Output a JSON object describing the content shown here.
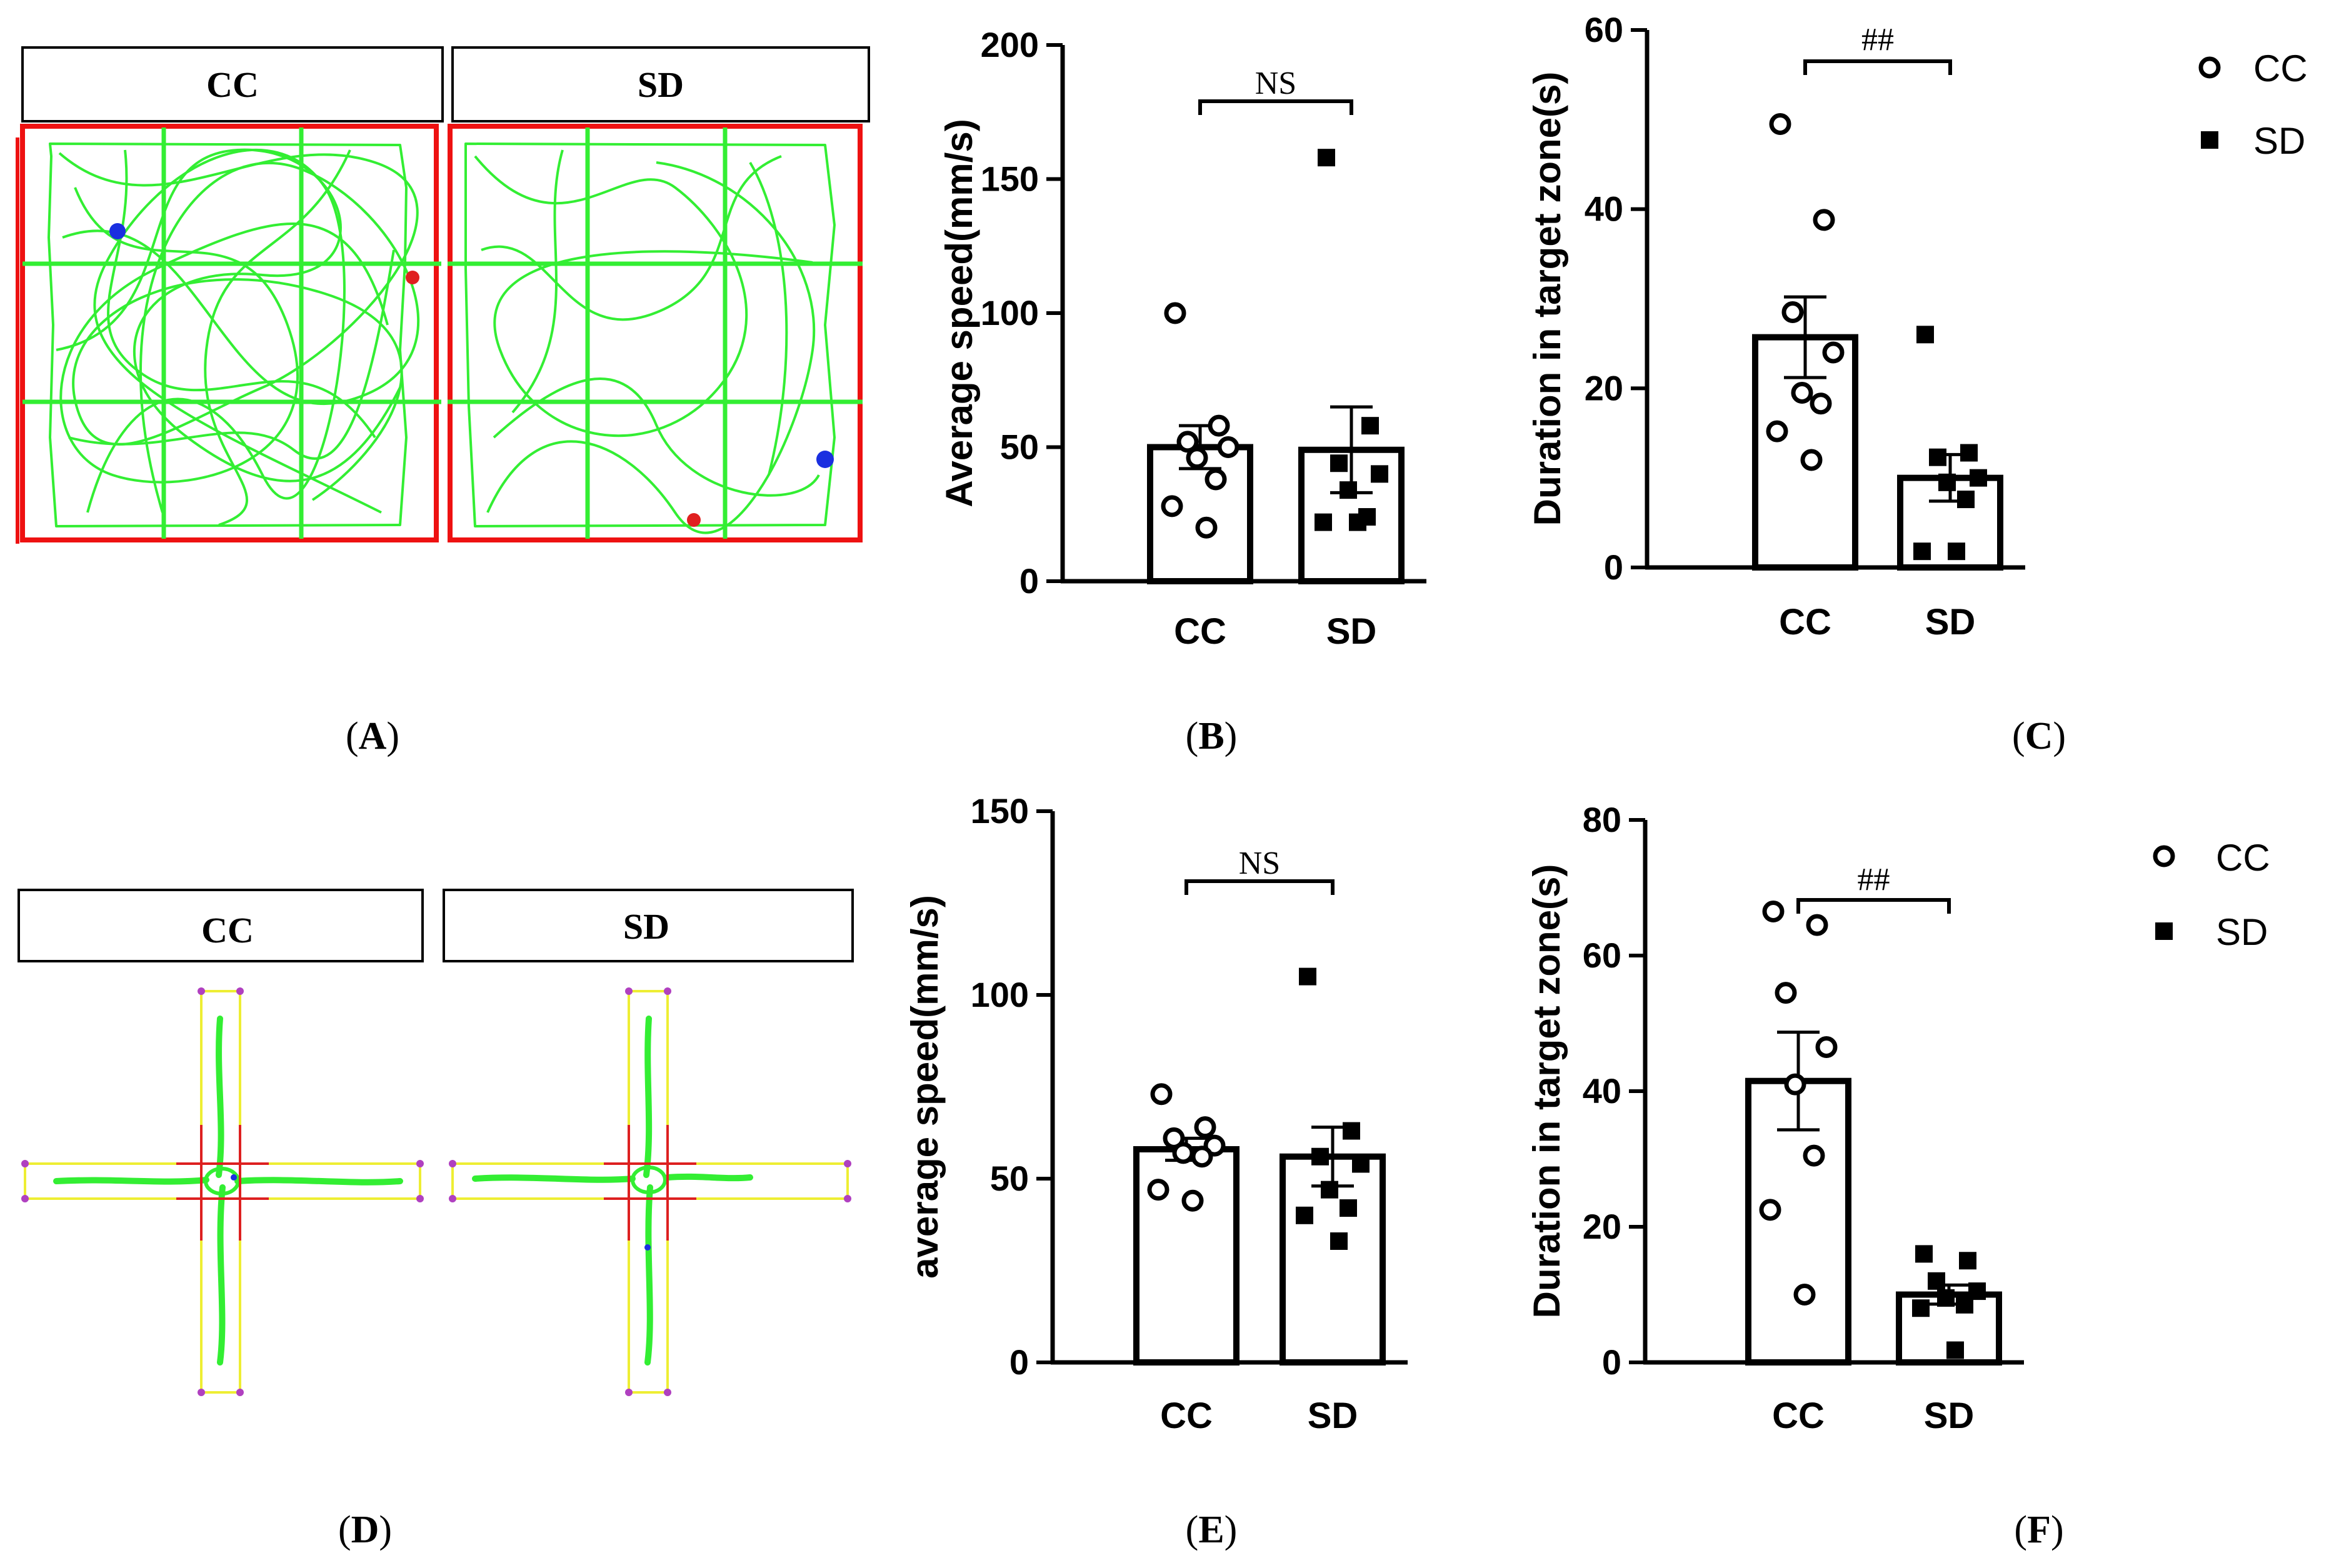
{
  "panel_labels": {
    "A": "A",
    "B": "B",
    "C": "C",
    "D": "D",
    "E": "E",
    "F": "F"
  },
  "panel_a": {
    "left_label": "CC",
    "right_label": "SD"
  },
  "panel_d": {
    "left_label": "CC",
    "right_label": "SD"
  },
  "legend": [
    {
      "label": "CC",
      "marker": "open-circle"
    },
    {
      "label": "SD",
      "marker": "filled-square"
    }
  ],
  "colors": {
    "track": "#33ee33",
    "arena": "#ee1111",
    "dot_blue": "#1a2fe0",
    "dot_red": "#e02020",
    "maze_outline": "#eeee33",
    "maze_corner": "#b040c0"
  },
  "chart_data": [
    {
      "id": "B",
      "type": "bar",
      "ylabel": "Average speed(mm/s)",
      "ylim": [
        0,
        200
      ],
      "yticks": [
        0,
        50,
        100,
        150,
        200
      ],
      "categories": [
        "CC",
        "SD"
      ],
      "values": [
        50,
        49
      ],
      "sem": [
        8,
        16
      ],
      "significance": "NS",
      "points": [
        [
          100,
          58,
          52,
          50,
          46,
          38,
          28,
          20
        ],
        [
          158,
          58,
          44,
          40,
          34,
          24,
          22,
          22
        ]
      ]
    },
    {
      "id": "C",
      "type": "bar",
      "ylabel": "Duration in target zone(s)",
      "ylim": [
        0,
        60
      ],
      "yticks": [
        0,
        20,
        40,
        60
      ],
      "categories": [
        "CC",
        "SD"
      ],
      "values": [
        25.7,
        10.0
      ],
      "sem": [
        4.5,
        2.6
      ],
      "significance": "##",
      "points": [
        [
          49.5,
          38.8,
          28.5,
          24.0,
          19.5,
          18.3,
          15.2,
          12.0
        ],
        [
          26.0,
          12.8,
          12.3,
          10.0,
          9.5,
          7.6,
          1.8,
          1.8
        ]
      ]
    },
    {
      "id": "E",
      "type": "bar",
      "ylabel": "average speed(mm/s)",
      "ylim": [
        0,
        150
      ],
      "yticks": [
        0,
        50,
        100,
        150
      ],
      "categories": [
        "CC",
        "SD"
      ],
      "values": [
        58,
        56
      ],
      "sem": [
        3,
        8
      ],
      "significance": "NS",
      "points": [
        [
          73,
          64,
          61,
          59,
          57,
          56,
          47,
          44
        ],
        [
          105,
          63,
          56,
          54,
          47,
          42,
          40,
          33
        ]
      ]
    },
    {
      "id": "F",
      "type": "bar",
      "ylabel": "Duration in target zone(s)",
      "ylim": [
        0,
        80
      ],
      "yticks": [
        0,
        20,
        40,
        60,
        80
      ],
      "categories": [
        "CC",
        "SD"
      ],
      "values": [
        41.5,
        10.0
      ],
      "sem": [
        7.2,
        1.4
      ],
      "significance": "##",
      "points": [
        [
          66.5,
          64.5,
          54.5,
          46.5,
          41.0,
          30.5,
          22.5,
          10.0
        ],
        [
          16.0,
          15.0,
          12.0,
          10.5,
          9.5,
          8.5,
          8.0,
          1.8
        ]
      ]
    }
  ]
}
